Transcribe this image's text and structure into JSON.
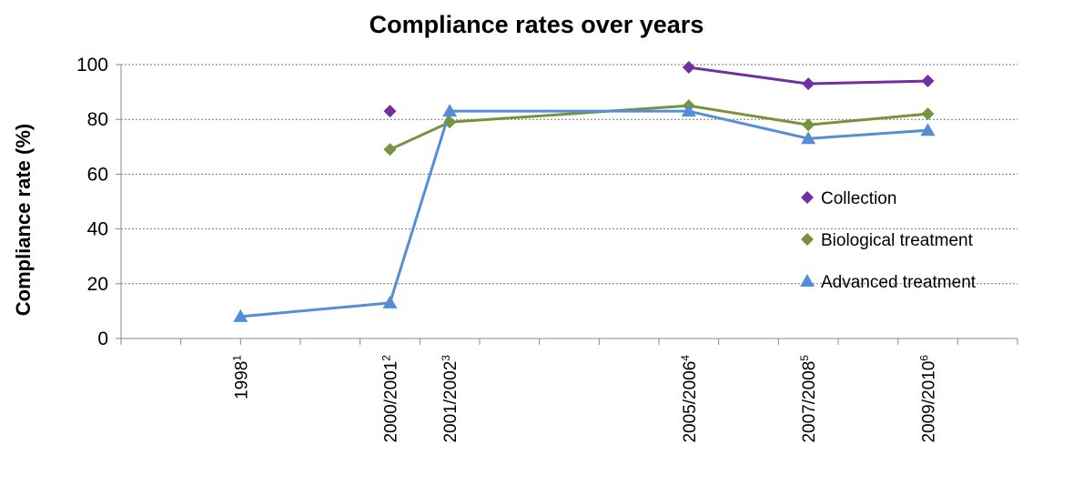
{
  "chart_data": {
    "type": "line",
    "title": "Compliance rates over years",
    "ylabel": "Compliance rate (%)",
    "xlabel": "",
    "ylim": [
      0,
      100
    ],
    "y_ticks": [
      "0",
      "20",
      "40",
      "60",
      "80",
      "100"
    ],
    "categories": [
      {
        "label": "1998",
        "sup": "1"
      },
      {
        "label": "2000/2001",
        "sup": "2"
      },
      {
        "label": "2001/2002",
        "sup": "3"
      },
      {
        "label": "2005/2006",
        "sup": "4"
      },
      {
        "label": "2007/2008",
        "sup": "5"
      },
      {
        "label": "2009/2010",
        "sup": "6"
      }
    ],
    "x_values": [
      1998,
      2000.5,
      2001.5,
      2005.5,
      2007.5,
      2009.5
    ],
    "x_range": [
      1996,
      2011
    ],
    "grid": "horizontal dashed",
    "legend_position": "right",
    "series": [
      {
        "name": "Collection",
        "color": "#7030a0",
        "marker": "diamond",
        "values": [
          null,
          83,
          null,
          99,
          93,
          94
        ]
      },
      {
        "name": "Biological treatment",
        "color": "#77933c",
        "marker": "diamond",
        "values": [
          null,
          69,
          79,
          85,
          78,
          82
        ]
      },
      {
        "name": "Advanced treatment",
        "color": "#558ed5",
        "marker": "triangle",
        "values": [
          8,
          13,
          83,
          83,
          73,
          76
        ]
      }
    ]
  }
}
